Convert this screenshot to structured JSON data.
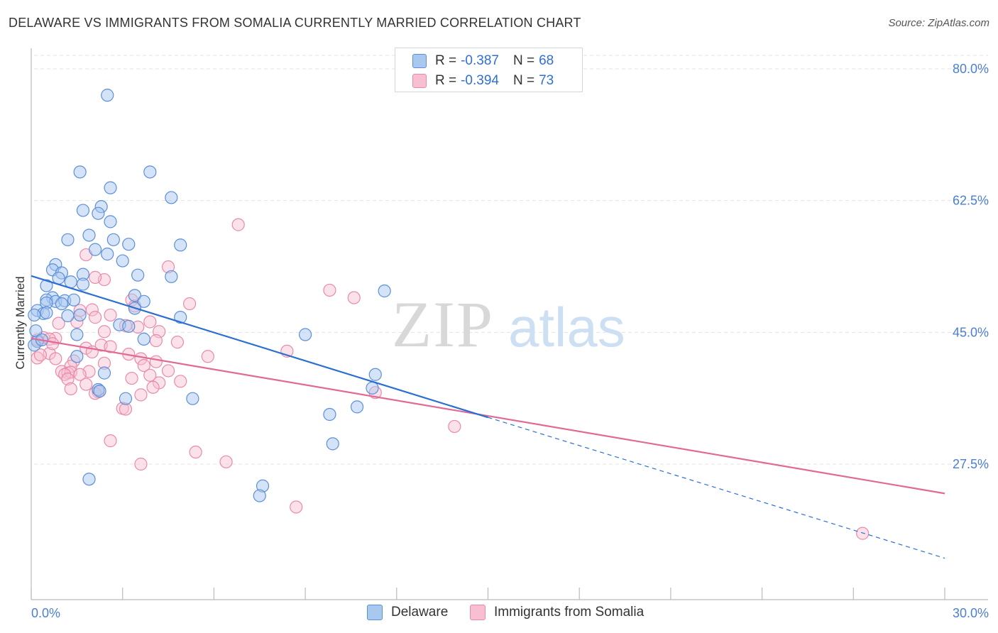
{
  "title": "DELAWARE VS IMMIGRANTS FROM SOMALIA CURRENTLY MARRIED CORRELATION CHART",
  "source": "Source: ZipAtlas.com",
  "watermark": {
    "zip": "ZIP",
    "atlas": "atlas"
  },
  "colors": {
    "delaware_fill": "#a9c8f0",
    "delaware_stroke": "#5b8fd9",
    "delaware_line": "#2b6fd0",
    "somalia_fill": "#f7bfd0",
    "somalia_stroke": "#e98aa9",
    "somalia_line": "#e06a95",
    "tick_text": "#4a7fd4",
    "grid": "#e3e3e3"
  },
  "legend": {
    "rows": [
      {
        "series": "Delaware",
        "r_label": "R =",
        "r_value": "-0.387",
        "n_label": "N =",
        "n_value": "68"
      },
      {
        "series": "Immigrants from Somalia",
        "r_label": "R =",
        "r_value": "-0.394",
        "n_label": "N =",
        "n_value": "73"
      }
    ]
  },
  "chart_data": {
    "type": "scatter",
    "title": "DELAWARE VS IMMIGRANTS FROM SOMALIA CURRENTLY MARRIED CORRELATION CHART",
    "xlabel": "",
    "ylabel": "Currently Married",
    "xlim": [
      0,
      30
    ],
    "ylim": [
      10,
      82
    ],
    "x_tick_labels": [
      "0.0%",
      "30.0%"
    ],
    "y_ticks": [
      27.5,
      45.0,
      62.5,
      80.0
    ],
    "y_tick_labels": [
      "27.5%",
      "45.0%",
      "62.5%",
      "80.0%"
    ],
    "grid": "horizontal dashed",
    "legend_position": "top-center and bottom",
    "series": [
      {
        "name": "Delaware",
        "r": -0.387,
        "n": 68,
        "trend": {
          "x": [
            0,
            15
          ],
          "y": [
            52.5,
            33.7
          ]
        },
        "trend_extension": {
          "x": [
            15,
            30
          ],
          "y": [
            33.7,
            15.0
          ]
        },
        "points": [
          [
            2.5,
            76.5
          ],
          [
            1.6,
            66.3
          ],
          [
            3.9,
            66.3
          ],
          [
            2.6,
            64.2
          ],
          [
            4.6,
            62.9
          ],
          [
            2.3,
            61.7
          ],
          [
            1.7,
            61.2
          ],
          [
            2.2,
            60.8
          ],
          [
            2.6,
            59.7
          ],
          [
            1.9,
            57.9
          ],
          [
            1.2,
            57.3
          ],
          [
            2.7,
            57.3
          ],
          [
            3.2,
            56.7
          ],
          [
            4.9,
            56.6
          ],
          [
            2.1,
            56.0
          ],
          [
            2.5,
            55.4
          ],
          [
            3.0,
            54.5
          ],
          [
            0.8,
            54.0
          ],
          [
            0.7,
            53.3
          ],
          [
            1.0,
            52.9
          ],
          [
            1.7,
            52.7
          ],
          [
            3.5,
            52.6
          ],
          [
            4.6,
            52.4
          ],
          [
            0.9,
            52.2
          ],
          [
            1.3,
            51.7
          ],
          [
            1.7,
            51.4
          ],
          [
            0.5,
            51.2
          ],
          [
            11.6,
            50.5
          ],
          [
            3.4,
            49.9
          ],
          [
            0.7,
            49.6
          ],
          [
            0.5,
            49.3
          ],
          [
            0.8,
            49.1
          ],
          [
            1.1,
            49.2
          ],
          [
            1.4,
            49.3
          ],
          [
            3.7,
            49.1
          ],
          [
            0.5,
            48.9
          ],
          [
            1.0,
            48.8
          ],
          [
            0.2,
            47.9
          ],
          [
            0.4,
            47.5
          ],
          [
            0.5,
            47.6
          ],
          [
            0.1,
            47.3
          ],
          [
            1.2,
            47.2
          ],
          [
            1.6,
            47.3
          ],
          [
            4.9,
            47.0
          ],
          [
            3.4,
            48.2
          ],
          [
            2.9,
            46.0
          ],
          [
            3.2,
            45.8
          ],
          [
            1.5,
            44.7
          ],
          [
            9.0,
            44.7
          ],
          [
            3.7,
            44.1
          ],
          [
            0.2,
            43.8
          ],
          [
            0.1,
            43.3
          ],
          [
            1.5,
            41.8
          ],
          [
            11.3,
            39.4
          ],
          [
            2.4,
            39.6
          ],
          [
            2.2,
            37.4
          ],
          [
            11.2,
            37.6
          ],
          [
            3.1,
            36.2
          ],
          [
            5.3,
            36.2
          ],
          [
            10.7,
            35.1
          ],
          [
            9.8,
            34.1
          ],
          [
            9.9,
            30.2
          ],
          [
            1.9,
            25.5
          ],
          [
            7.6,
            24.6
          ],
          [
            7.5,
            23.3
          ],
          [
            0.15,
            45.2
          ],
          [
            0.35,
            44.0
          ],
          [
            2.25,
            37.2
          ]
        ]
      },
      {
        "name": "Immigrants from Somalia",
        "r": -0.394,
        "n": 73,
        "trend": {
          "x": [
            0,
            30
          ],
          "y": [
            44.2,
            23.6
          ]
        },
        "points": [
          [
            6.8,
            59.3
          ],
          [
            1.8,
            55.3
          ],
          [
            4.5,
            53.7
          ],
          [
            2.4,
            52.0
          ],
          [
            2.1,
            52.3
          ],
          [
            9.8,
            50.6
          ],
          [
            10.6,
            49.6
          ],
          [
            3.3,
            49.3
          ],
          [
            5.2,
            48.8
          ],
          [
            3.4,
            48.5
          ],
          [
            2.0,
            48.0
          ],
          [
            1.6,
            47.9
          ],
          [
            2.6,
            47.3
          ],
          [
            2.1,
            47.0
          ],
          [
            1.5,
            46.4
          ],
          [
            3.9,
            46.4
          ],
          [
            0.9,
            46.2
          ],
          [
            3.5,
            45.7
          ],
          [
            3.1,
            45.9
          ],
          [
            2.4,
            45.1
          ],
          [
            4.2,
            45.1
          ],
          [
            0.4,
            44.3
          ],
          [
            0.8,
            44.2
          ],
          [
            0.6,
            44.1
          ],
          [
            0.2,
            44.0
          ],
          [
            4.1,
            43.9
          ],
          [
            4.8,
            43.7
          ],
          [
            2.3,
            43.3
          ],
          [
            2.6,
            43.1
          ],
          [
            1.8,
            42.9
          ],
          [
            8.4,
            42.5
          ],
          [
            2.0,
            42.4
          ],
          [
            0.6,
            42.2
          ],
          [
            3.2,
            42.1
          ],
          [
            5.8,
            41.8
          ],
          [
            0.2,
            41.6
          ],
          [
            0.8,
            41.5
          ],
          [
            3.6,
            41.5
          ],
          [
            1.4,
            41.2
          ],
          [
            4.1,
            41.1
          ],
          [
            2.4,
            40.9
          ],
          [
            3.7,
            40.6
          ],
          [
            1.3,
            40.5
          ],
          [
            1.0,
            39.8
          ],
          [
            1.2,
            39.6
          ],
          [
            1.3,
            39.7
          ],
          [
            1.9,
            39.8
          ],
          [
            4.5,
            39.9
          ],
          [
            1.1,
            39.4
          ],
          [
            3.9,
            39.3
          ],
          [
            1.6,
            39.4
          ],
          [
            3.3,
            38.9
          ],
          [
            1.2,
            38.8
          ],
          [
            1.8,
            38.1
          ],
          [
            4.2,
            38.3
          ],
          [
            4.0,
            37.7
          ],
          [
            2.2,
            37.1
          ],
          [
            11.3,
            37.0
          ],
          [
            3.6,
            36.7
          ],
          [
            1.3,
            37.5
          ],
          [
            3.0,
            34.9
          ],
          [
            3.1,
            34.8
          ],
          [
            13.9,
            32.5
          ],
          [
            2.6,
            30.6
          ],
          [
            5.4,
            29.1
          ],
          [
            6.4,
            27.8
          ],
          [
            3.6,
            27.5
          ],
          [
            8.7,
            21.8
          ],
          [
            27.3,
            18.3
          ],
          [
            0.3,
            42.0
          ],
          [
            4.9,
            38.5
          ],
          [
            2.1,
            36.9
          ],
          [
            0.7,
            43.5
          ]
        ]
      }
    ]
  }
}
